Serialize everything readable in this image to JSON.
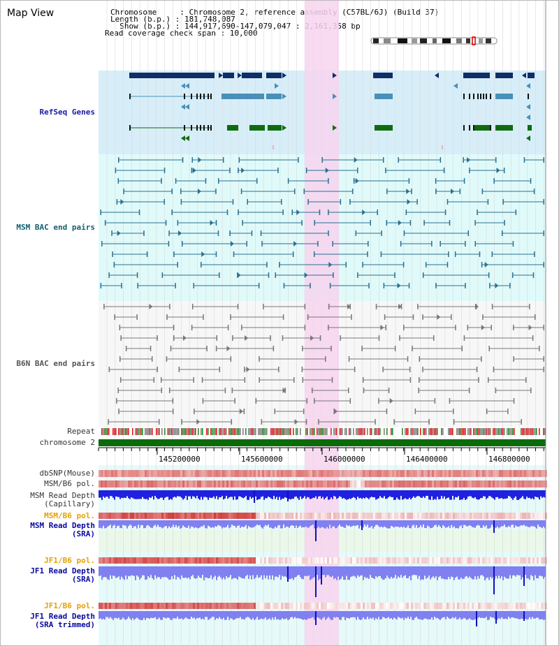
{
  "view": {
    "title": "Map View",
    "chromosome_line": "Chromosome     : Chromosome 2, reference assembly (C57BL/6J) (Build 37)",
    "length_line": "Length (b.p.) : 181,748,087",
    "show_line": "  Show (b.p.) : 144,917,690-147,079,047 : 2,161,358 bp",
    "coverage_line": "Read coverage check span : 10,000"
  },
  "tracks": {
    "refseq": "RefSeq Genes",
    "msm_bac": "MSM BAC end pairs",
    "b6n_bac": "B6N BAC end pairs",
    "repeat": "Repeat",
    "chromosome": "chromosome 2",
    "dbsnp": "dbSNP(Mouse)",
    "msm_b6_pol": "MSM/B6 pol.",
    "msm_read_cap_1": "MSM Read Depth",
    "msm_read_cap_2": "(Capillary)",
    "msm_b6_pol2": "MSM/B6 pol.",
    "msm_read_sra_1": "MSM Read Depth",
    "msm_read_sra_2": "(SRA)",
    "jf1_b6_pol": "JF1/B6 pol.",
    "jf1_read_sra_1": "JF1 Read Depth",
    "jf1_read_sra_2": "(SRA)",
    "jf1_b6_pol2": "JF1/B6 pol.",
    "jf1_read_trim_1": "JF1 Read Depth",
    "jf1_read_trim_2": "(SRA trimmed)"
  },
  "axis": {
    "ticks": [
      "145200000",
      "145600000",
      "146000000",
      "146400000",
      "146800000"
    ]
  },
  "colors": {
    "refseq_bg": "#d7eef9",
    "msm_bg": "#e0fafa",
    "b6n_bg": "#f7f7f7",
    "highlight": "#f7d4ee",
    "gene_navy": "#0f2e66",
    "gene_steel": "#4a8fb8",
    "gene_green": "#0f6b0f",
    "msm_line": "#2a7090",
    "b6n_line": "#777777",
    "chromosome": "#0b6b0b",
    "depth_blue": "#2020e0",
    "depth_light": "#8080f0"
  }
}
